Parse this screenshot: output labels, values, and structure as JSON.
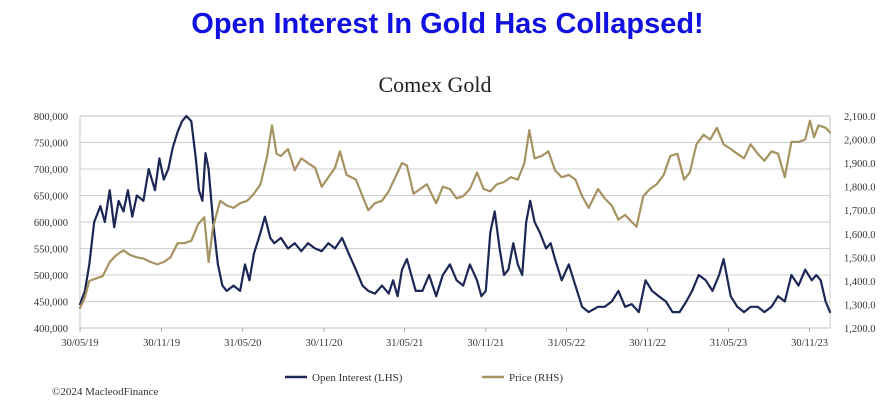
{
  "headline": "Open Interest In Gold Has Collapsed!",
  "footer": "©2024 MacleodFinance",
  "colors": {
    "headline": "#1010e0",
    "open_interest": "#1c2755",
    "price": "#a69362",
    "grid": "#bfbfbf"
  },
  "chart_data": {
    "type": "line",
    "title": "Comex Gold",
    "x_tick_labels": [
      "30/05/19",
      "30/11/19",
      "31/05/20",
      "30/11/20",
      "31/05/21",
      "30/11/21",
      "31/05/22",
      "30/11/22",
      "31/05/23",
      "30/11/23"
    ],
    "y_left": {
      "ticks": [
        "400,000",
        "450,000",
        "500,000",
        "550,000",
        "600,000",
        "650,000",
        "700,000",
        "750,000",
        "800,000"
      ],
      "range": [
        400000,
        800000
      ]
    },
    "y_right": {
      "ticks": [
        "1,200.0",
        "1,300.0",
        "1,400.0",
        "1,500.0",
        "1,600.0",
        "1,700.0",
        "1,800.0",
        "1,900.0",
        "2,000.0",
        "2,100.0"
      ],
      "range": [
        1200,
        2100
      ]
    },
    "x_range": [
      "2019-05-30",
      "2024-01-15"
    ],
    "grid": "horizontal",
    "legend_position": "bottom",
    "series": [
      {
        "name": "Open Interest (LHS)",
        "axis": "left",
        "points": [
          [
            "2019-05-30",
            445000
          ],
          [
            "2019-06-10",
            470000
          ],
          [
            "2019-06-20",
            520000
          ],
          [
            "2019-07-01",
            600000
          ],
          [
            "2019-07-15",
            630000
          ],
          [
            "2019-07-25",
            600000
          ],
          [
            "2019-08-05",
            660000
          ],
          [
            "2019-08-15",
            590000
          ],
          [
            "2019-08-25",
            640000
          ],
          [
            "2019-09-05",
            620000
          ],
          [
            "2019-09-15",
            660000
          ],
          [
            "2019-09-25",
            610000
          ],
          [
            "2019-10-05",
            650000
          ],
          [
            "2019-10-20",
            640000
          ],
          [
            "2019-11-01",
            700000
          ],
          [
            "2019-11-15",
            660000
          ],
          [
            "2019-11-25",
            720000
          ],
          [
            "2019-12-05",
            680000
          ],
          [
            "2019-12-15",
            700000
          ],
          [
            "2019-12-25",
            740000
          ],
          [
            "2020-01-05",
            770000
          ],
          [
            "2020-01-15",
            790000
          ],
          [
            "2020-01-25",
            800000
          ],
          [
            "2020-02-05",
            790000
          ],
          [
            "2020-02-15",
            720000
          ],
          [
            "2020-02-22",
            660000
          ],
          [
            "2020-03-01",
            640000
          ],
          [
            "2020-03-08",
            730000
          ],
          [
            "2020-03-15",
            700000
          ],
          [
            "2020-03-25",
            600000
          ],
          [
            "2020-04-05",
            520000
          ],
          [
            "2020-04-15",
            480000
          ],
          [
            "2020-04-25",
            470000
          ],
          [
            "2020-05-10",
            480000
          ],
          [
            "2020-05-25",
            470000
          ],
          [
            "2020-06-05",
            520000
          ],
          [
            "2020-06-15",
            490000
          ],
          [
            "2020-06-25",
            540000
          ],
          [
            "2020-07-10",
            580000
          ],
          [
            "2020-07-20",
            610000
          ],
          [
            "2020-08-01",
            570000
          ],
          [
            "2020-08-10",
            560000
          ],
          [
            "2020-08-25",
            570000
          ],
          [
            "2020-09-10",
            550000
          ],
          [
            "2020-09-25",
            560000
          ],
          [
            "2020-10-10",
            545000
          ],
          [
            "2020-10-25",
            560000
          ],
          [
            "2020-11-10",
            550000
          ],
          [
            "2020-11-25",
            545000
          ],
          [
            "2020-12-10",
            560000
          ],
          [
            "2020-12-25",
            550000
          ],
          [
            "2021-01-10",
            570000
          ],
          [
            "2021-01-25",
            540000
          ],
          [
            "2021-02-10",
            510000
          ],
          [
            "2021-02-25",
            480000
          ],
          [
            "2021-03-10",
            470000
          ],
          [
            "2021-03-25",
            465000
          ],
          [
            "2021-04-10",
            480000
          ],
          [
            "2021-04-25",
            465000
          ],
          [
            "2021-05-05",
            490000
          ],
          [
            "2021-05-15",
            460000
          ],
          [
            "2021-05-25",
            510000
          ],
          [
            "2021-06-05",
            530000
          ],
          [
            "2021-06-15",
            500000
          ],
          [
            "2021-06-25",
            470000
          ],
          [
            "2021-07-10",
            470000
          ],
          [
            "2021-07-25",
            500000
          ],
          [
            "2021-08-10",
            460000
          ],
          [
            "2021-08-25",
            500000
          ],
          [
            "2021-09-10",
            520000
          ],
          [
            "2021-09-25",
            490000
          ],
          [
            "2021-10-10",
            480000
          ],
          [
            "2021-10-25",
            520000
          ],
          [
            "2021-11-10",
            490000
          ],
          [
            "2021-11-20",
            460000
          ],
          [
            "2021-11-30",
            470000
          ],
          [
            "2021-12-10",
            580000
          ],
          [
            "2021-12-20",
            620000
          ],
          [
            "2021-12-31",
            550000
          ],
          [
            "2022-01-10",
            500000
          ],
          [
            "2022-01-20",
            510000
          ],
          [
            "2022-01-31",
            560000
          ],
          [
            "2022-02-10",
            520000
          ],
          [
            "2022-02-20",
            500000
          ],
          [
            "2022-03-01",
            600000
          ],
          [
            "2022-03-10",
            640000
          ],
          [
            "2022-03-20",
            600000
          ],
          [
            "2022-04-01",
            580000
          ],
          [
            "2022-04-15",
            550000
          ],
          [
            "2022-04-25",
            560000
          ],
          [
            "2022-05-05",
            530000
          ],
          [
            "2022-05-20",
            490000
          ],
          [
            "2022-06-05",
            520000
          ],
          [
            "2022-06-20",
            480000
          ],
          [
            "2022-07-05",
            440000
          ],
          [
            "2022-07-20",
            430000
          ],
          [
            "2022-08-10",
            440000
          ],
          [
            "2022-08-25",
            440000
          ],
          [
            "2022-09-10",
            450000
          ],
          [
            "2022-09-25",
            470000
          ],
          [
            "2022-10-10",
            440000
          ],
          [
            "2022-10-25",
            445000
          ],
          [
            "2022-11-10",
            430000
          ],
          [
            "2022-11-25",
            490000
          ],
          [
            "2022-12-10",
            470000
          ],
          [
            "2022-12-25",
            460000
          ],
          [
            "2023-01-10",
            450000
          ],
          [
            "2023-01-25",
            430000
          ],
          [
            "2023-02-10",
            430000
          ],
          [
            "2023-02-25",
            450000
          ],
          [
            "2023-03-10",
            470000
          ],
          [
            "2023-03-25",
            500000
          ],
          [
            "2023-04-10",
            490000
          ],
          [
            "2023-04-25",
            470000
          ],
          [
            "2023-05-10",
            500000
          ],
          [
            "2023-05-20",
            530000
          ],
          [
            "2023-06-05",
            460000
          ],
          [
            "2023-06-20",
            440000
          ],
          [
            "2023-07-05",
            430000
          ],
          [
            "2023-07-20",
            440000
          ],
          [
            "2023-08-05",
            440000
          ],
          [
            "2023-08-20",
            430000
          ],
          [
            "2023-09-05",
            440000
          ],
          [
            "2023-09-20",
            460000
          ],
          [
            "2023-10-05",
            450000
          ],
          [
            "2023-10-20",
            500000
          ],
          [
            "2023-11-05",
            480000
          ],
          [
            "2023-11-20",
            510000
          ],
          [
            "2023-12-05",
            490000
          ],
          [
            "2023-12-15",
            500000
          ],
          [
            "2023-12-25",
            490000
          ],
          [
            "2024-01-05",
            450000
          ],
          [
            "2024-01-15",
            430000
          ]
        ]
      },
      {
        "name": "Price (RHS)",
        "axis": "right",
        "points": [
          [
            "2019-05-30",
            1285
          ],
          [
            "2019-06-10",
            1330
          ],
          [
            "2019-06-20",
            1400
          ],
          [
            "2019-07-05",
            1410
          ],
          [
            "2019-07-20",
            1420
          ],
          [
            "2019-08-05",
            1480
          ],
          [
            "2019-08-20",
            1510
          ],
          [
            "2019-09-05",
            1530
          ],
          [
            "2019-09-20",
            1510
          ],
          [
            "2019-10-05",
            1500
          ],
          [
            "2019-10-20",
            1495
          ],
          [
            "2019-11-05",
            1480
          ],
          [
            "2019-11-20",
            1470
          ],
          [
            "2019-12-05",
            1480
          ],
          [
            "2019-12-20",
            1500
          ],
          [
            "2020-01-05",
            1560
          ],
          [
            "2020-01-20",
            1560
          ],
          [
            "2020-02-05",
            1570
          ],
          [
            "2020-02-20",
            1640
          ],
          [
            "2020-03-05",
            1670
          ],
          [
            "2020-03-15",
            1480
          ],
          [
            "2020-03-25",
            1630
          ],
          [
            "2020-04-10",
            1740
          ],
          [
            "2020-04-25",
            1720
          ],
          [
            "2020-05-10",
            1710
          ],
          [
            "2020-05-25",
            1730
          ],
          [
            "2020-06-10",
            1740
          ],
          [
            "2020-06-25",
            1770
          ],
          [
            "2020-07-10",
            1810
          ],
          [
            "2020-07-25",
            1930
          ],
          [
            "2020-08-05",
            2060
          ],
          [
            "2020-08-15",
            1940
          ],
          [
            "2020-08-25",
            1930
          ],
          [
            "2020-09-10",
            1960
          ],
          [
            "2020-09-25",
            1870
          ],
          [
            "2020-10-10",
            1920
          ],
          [
            "2020-10-25",
            1900
          ],
          [
            "2020-11-10",
            1880
          ],
          [
            "2020-11-25",
            1800
          ],
          [
            "2020-12-10",
            1840
          ],
          [
            "2020-12-25",
            1880
          ],
          [
            "2021-01-05",
            1950
          ],
          [
            "2021-01-20",
            1850
          ],
          [
            "2021-02-10",
            1830
          ],
          [
            "2021-02-25",
            1760
          ],
          [
            "2021-03-10",
            1700
          ],
          [
            "2021-03-25",
            1730
          ],
          [
            "2021-04-10",
            1740
          ],
          [
            "2021-04-25",
            1780
          ],
          [
            "2021-05-10",
            1840
          ],
          [
            "2021-05-25",
            1900
          ],
          [
            "2021-06-05",
            1890
          ],
          [
            "2021-06-20",
            1770
          ],
          [
            "2021-07-05",
            1790
          ],
          [
            "2021-07-20",
            1810
          ],
          [
            "2021-08-10",
            1730
          ],
          [
            "2021-08-25",
            1800
          ],
          [
            "2021-09-10",
            1790
          ],
          [
            "2021-09-25",
            1750
          ],
          [
            "2021-10-10",
            1760
          ],
          [
            "2021-10-25",
            1790
          ],
          [
            "2021-11-10",
            1860
          ],
          [
            "2021-11-25",
            1790
          ],
          [
            "2021-12-10",
            1780
          ],
          [
            "2021-12-25",
            1810
          ],
          [
            "2022-01-10",
            1820
          ],
          [
            "2022-01-25",
            1840
          ],
          [
            "2022-02-10",
            1830
          ],
          [
            "2022-02-25",
            1900
          ],
          [
            "2022-03-08",
            2040
          ],
          [
            "2022-03-20",
            1920
          ],
          [
            "2022-04-05",
            1930
          ],
          [
            "2022-04-20",
            1950
          ],
          [
            "2022-05-05",
            1870
          ],
          [
            "2022-05-20",
            1840
          ],
          [
            "2022-06-05",
            1850
          ],
          [
            "2022-06-20",
            1830
          ],
          [
            "2022-07-05",
            1760
          ],
          [
            "2022-07-20",
            1710
          ],
          [
            "2022-08-10",
            1790
          ],
          [
            "2022-08-25",
            1750
          ],
          [
            "2022-09-10",
            1720
          ],
          [
            "2022-09-25",
            1660
          ],
          [
            "2022-10-10",
            1680
          ],
          [
            "2022-10-25",
            1650
          ],
          [
            "2022-11-05",
            1630
          ],
          [
            "2022-11-20",
            1760
          ],
          [
            "2022-12-05",
            1790
          ],
          [
            "2022-12-20",
            1810
          ],
          [
            "2023-01-05",
            1850
          ],
          [
            "2023-01-20",
            1930
          ],
          [
            "2023-02-05",
            1940
          ],
          [
            "2023-02-20",
            1830
          ],
          [
            "2023-03-05",
            1860
          ],
          [
            "2023-03-20",
            1980
          ],
          [
            "2023-04-05",
            2020
          ],
          [
            "2023-04-20",
            2000
          ],
          [
            "2023-05-05",
            2050
          ],
          [
            "2023-05-20",
            1980
          ],
          [
            "2023-06-05",
            1960
          ],
          [
            "2023-06-20",
            1940
          ],
          [
            "2023-07-05",
            1920
          ],
          [
            "2023-07-20",
            1980
          ],
          [
            "2023-08-05",
            1940
          ],
          [
            "2023-08-20",
            1910
          ],
          [
            "2023-09-05",
            1950
          ],
          [
            "2023-09-20",
            1940
          ],
          [
            "2023-10-05",
            1840
          ],
          [
            "2023-10-20",
            1990
          ],
          [
            "2023-11-05",
            1990
          ],
          [
            "2023-11-20",
            2000
          ],
          [
            "2023-12-01",
            2080
          ],
          [
            "2023-12-10",
            2010
          ],
          [
            "2023-12-20",
            2060
          ],
          [
            "2024-01-05",
            2050
          ],
          [
            "2024-01-15",
            2030
          ]
        ]
      }
    ]
  }
}
